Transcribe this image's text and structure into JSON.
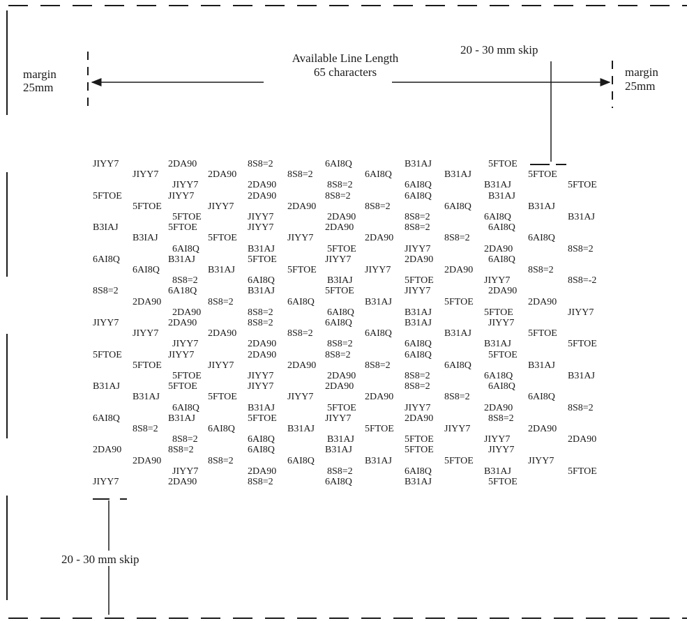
{
  "labels": {
    "margin_left": "margin",
    "margin_left_size": "25mm",
    "margin_right": "margin",
    "margin_right_size": "25mm",
    "line_length_title": "Available Line Length",
    "line_length_chars": "65 characters",
    "skip_top": "20 - 30 mm skip",
    "skip_bottom": "20 - 30 mm skip"
  },
  "rows": [
    [
      "JIYY7",
      "2DA90",
      "8S8=2",
      "6AI8Q",
      "B31AJ",
      "5FTOE"
    ],
    [
      "JIYY7",
      "2DA90",
      "8S8=2",
      "6AI8Q",
      "B31AJ",
      "5FTOE"
    ],
    [
      "JIYY7",
      "2DA90",
      "8S8=2",
      "6AI8Q",
      "B31AJ",
      "5FTOE"
    ],
    [
      "5FTOE",
      "JIYY7",
      "2DA90",
      "8S8=2",
      "6AI8Q",
      "B31AJ"
    ],
    [
      "5FTOE",
      "JIYY7",
      "2DA90",
      "8S8=2",
      "6AI8Q",
      "B31AJ"
    ],
    [
      "5FTOE",
      "JIYY7",
      "2DA90",
      "8S8=2",
      "6AI8Q",
      "B31AJ"
    ],
    [
      "B3IAJ",
      "5FTOE",
      "JIYY7",
      "2DA90",
      "8S8=2",
      "6AI8Q"
    ],
    [
      "B3IAJ",
      "5FTOE",
      "JIYY7",
      "2DA90",
      "8S8=2",
      "6AI8Q"
    ],
    [
      "6AI8Q",
      "B31AJ",
      "5FTOE",
      "JIYY7",
      "2DA90",
      "8S8=2"
    ],
    [
      "6AI8Q",
      "B31AJ",
      "5FTOE",
      "JIYY7",
      "2DA90",
      "6AI8Q"
    ],
    [
      "6AI8Q",
      "B31AJ",
      "5FTOE",
      "JIYY7",
      "2DA90",
      "8S8=2"
    ],
    [
      "8S8=2",
      "6AI8Q",
      "B3IAJ",
      "5FTOE",
      "JIYY7",
      "8S8=-2"
    ],
    [
      "8S8=2",
      "6A18Q",
      "B31AJ",
      "5FTOE",
      "JIYY7",
      "2DA90"
    ],
    [
      "2DA90",
      "8S8=2",
      "6AI8Q",
      "B31AJ",
      "5FTOE",
      "2DA90"
    ],
    [
      "2DA90",
      "8S8=2",
      "6AI8Q",
      "B31AJ",
      "5FTOE",
      "JIYY7"
    ],
    [
      "JIYY7",
      "2DA90",
      "8S8=2",
      "6AI8Q",
      "B31AJ",
      "JIYY7"
    ],
    [
      "JIYY7",
      "2DA90",
      "8S8=2",
      "6AI8Q",
      "B31AJ",
      "5FTOE"
    ],
    [
      "JIYY7",
      "2DA90",
      "8S8=2",
      "6AI8Q",
      "B31AJ",
      "5FTOE"
    ],
    [
      "5FTOE",
      "JIYY7",
      "2DA90",
      "8S8=2",
      "6AI8Q",
      "5FTOE"
    ],
    [
      "5FTOE",
      "JIYY7",
      "2DA90",
      "8S8=2",
      "6AI8Q",
      "B31AJ"
    ],
    [
      "5FTOE",
      "JIYY7",
      "2DA90",
      "8S8=2",
      "6A18Q",
      "B31AJ"
    ],
    [
      "B31AJ",
      "5FTOE",
      "JIYY7",
      "2DA90",
      "8S8=2",
      "6AI8Q"
    ],
    [
      "B31AJ",
      "5FTOE",
      "JIYY7",
      "2DA90",
      "8S8=2",
      "6AI8Q"
    ],
    [
      "6AI8Q",
      "B31AJ",
      "5FTOE",
      "JIYY7",
      "2DA90",
      "8S8=2"
    ],
    [
      "6AI8Q",
      "B31AJ",
      "5FTOE",
      "JIYY7",
      "2DA90",
      "8S8=2"
    ],
    [
      "8S8=2",
      "6AI8Q",
      "B31AJ",
      "5FTOE",
      "JIYY7",
      "2DA90"
    ],
    [
      "8S8=2",
      "6AI8Q",
      "B31AJ",
      "5FTOE",
      "JIYY7",
      "2DA90"
    ],
    [
      "2DA90",
      "8S8=2",
      "6AI8Q",
      "B31AJ",
      "5FTOE",
      "JIYY7"
    ],
    [
      "2DA90",
      "8S8=2",
      "6AI8Q",
      "B31AJ",
      "5FTOE",
      "JIYY7"
    ],
    [
      "JIYY7",
      "2DA90",
      "8S8=2",
      "6AI8Q",
      "B31AJ",
      "5FTOE"
    ],
    [
      "JIYY7",
      "2DA90",
      "8S8=2",
      "6AI8Q",
      "B31AJ",
      "5FTOE"
    ]
  ]
}
